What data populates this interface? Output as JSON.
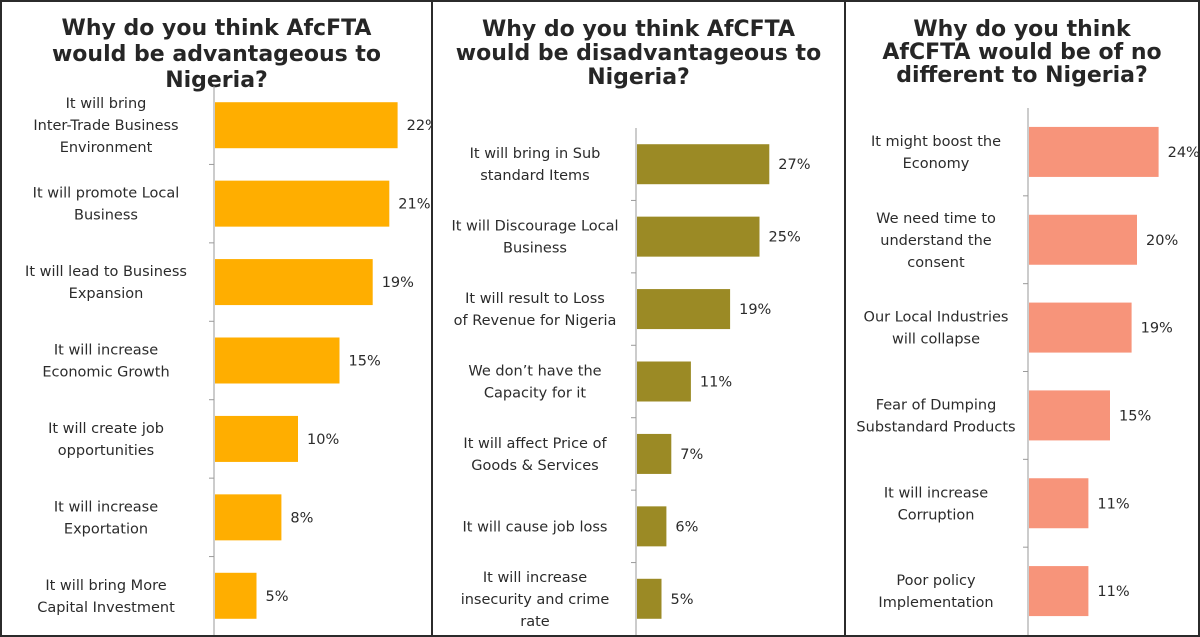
{
  "chart_data": [
    {
      "type": "bar",
      "orientation": "horizontal",
      "title": "Why do you think AfcFTA would be advantageous to Nigeria?",
      "color": "#FFAE00",
      "categories": [
        "It will bring Inter-Trade Business Environment",
        "It will promote Local Business",
        "It will lead to Business Expansion",
        "It will increase Economic Growth",
        "It will create job opportunities",
        "It will increase Exportation",
        "It will bring More Capital Investment"
      ],
      "values": [
        22,
        21,
        19,
        15,
        10,
        8,
        5
      ],
      "value_labels": [
        "22%",
        "21%",
        "19%",
        "15%",
        "10%",
        "8%",
        "5%"
      ],
      "grid": false,
      "legend": "none"
    },
    {
      "type": "bar",
      "orientation": "horizontal",
      "title": "Why do you think AfCFTA would be disadvantageous to Nigeria?",
      "color": "#9B8A25",
      "categories": [
        "It will bring in Sub standard Items",
        "It will Discourage Local Business",
        "It will result to Loss of Revenue for Nigeria",
        "We don’t have the Capacity for it",
        "It will affect Price of Goods & Services",
        "It will cause job loss",
        "It will increase insecurity and crime rate"
      ],
      "values": [
        27,
        25,
        19,
        11,
        7,
        6,
        5
      ],
      "value_labels": [
        "27%",
        "25%",
        "19%",
        "11%",
        "7%",
        "6%",
        "5%"
      ],
      "grid": false,
      "legend": "none"
    },
    {
      "type": "bar",
      "orientation": "horizontal",
      "title": "Why do you think AfCFTA would be of no different to Nigeria?",
      "color": "#F7947A",
      "categories": [
        "It might boost the Economy",
        "We need time to understand the consent",
        "Our Local Industries will collapse",
        "Fear of Dumping Substandard Products",
        "It will increase Corruption",
        "Poor policy Implementation"
      ],
      "values": [
        24,
        20,
        19,
        15,
        11,
        11
      ],
      "value_labels": [
        "24%",
        "20%",
        "19%",
        "15%",
        "11%",
        "11%"
      ],
      "grid": false,
      "legend": "none"
    }
  ]
}
